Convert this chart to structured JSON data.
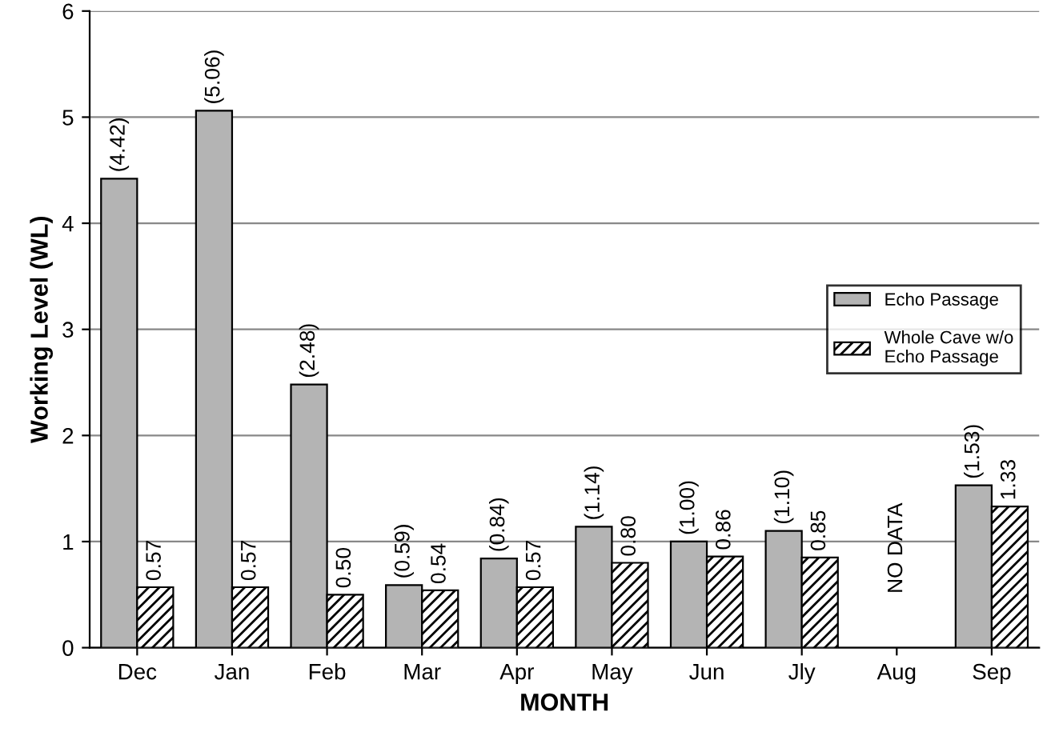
{
  "chart_data": {
    "type": "bar",
    "xlabel": "MONTH",
    "ylabel": "Working Level (WL)",
    "categories": [
      "Dec",
      "Jan",
      "Feb",
      "Mar",
      "Apr",
      "May",
      "Jun",
      "Jly",
      "Aug",
      "Sep"
    ],
    "series": [
      {
        "name": "Echo Passage",
        "color": "#b4b4b4",
        "values": [
          4.42,
          5.06,
          2.48,
          0.59,
          0.84,
          1.14,
          1.0,
          1.1,
          null,
          1.53
        ],
        "value_labels": [
          "(4.42)",
          "(5.06)",
          "(2.48)",
          "(0.59)",
          "(0.84)",
          "(1.14)",
          "(1.00)",
          "(1.10)",
          null,
          "(1.53)"
        ]
      },
      {
        "name": "Whole Cave w/o\nEcho Passage",
        "color": "#000000",
        "values": [
          0.57,
          0.57,
          0.5,
          0.54,
          0.57,
          0.8,
          0.86,
          0.85,
          null,
          1.33
        ],
        "value_labels": [
          "0.57",
          "0.57",
          "0.50",
          "0.54",
          "0.57",
          "0.80",
          "0.86",
          "0.85",
          null,
          "1.33"
        ]
      }
    ],
    "annotations": [
      "NO DATA"
    ],
    "ylim": [
      0,
      6
    ],
    "yticks": [
      0,
      1,
      2,
      3,
      4,
      5,
      6
    ],
    "grid": "y",
    "legend": "right"
  }
}
